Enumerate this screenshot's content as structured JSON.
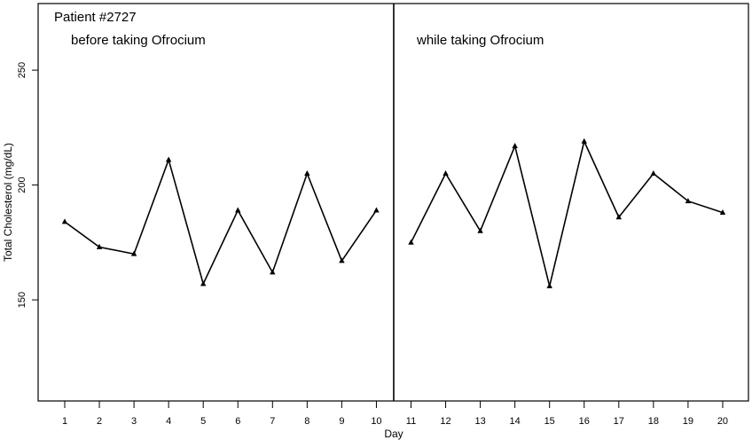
{
  "chart_data": {
    "type": "line",
    "title": "Patient #2727",
    "xlabel": "Day",
    "ylabel": "Total Cholesterol (mg/dL)",
    "ylim": [
      106,
      279
    ],
    "yticks": [
      150,
      200,
      250
    ],
    "grid": false,
    "phase_divider_after_day": 10.5,
    "annotations": [
      {
        "text": "before taking Ofrocium"
      },
      {
        "text": "while taking Ofrocium"
      }
    ],
    "x": [
      1,
      2,
      3,
      4,
      5,
      6,
      7,
      8,
      9,
      10,
      11,
      12,
      13,
      14,
      15,
      16,
      17,
      18,
      19,
      20
    ],
    "series": [
      {
        "values": [
          184,
          173,
          170,
          211,
          157,
          189,
          162,
          205,
          167,
          189,
          175,
          205,
          180,
          217,
          156,
          219,
          186,
          205,
          193,
          188
        ],
        "marker": "triangle",
        "color": "#000000"
      }
    ]
  }
}
